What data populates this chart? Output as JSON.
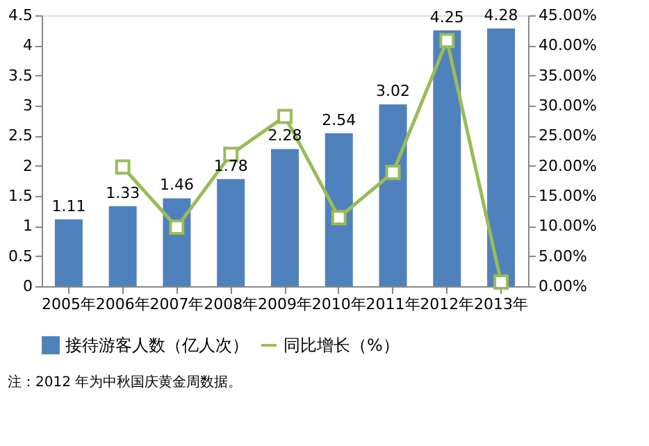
{
  "chart_data": {
    "type": "bar",
    "categories": [
      "2005年",
      "2006年",
      "2007年",
      "2008年",
      "2009年",
      "2010年",
      "2011年",
      "2012年",
      "2013年"
    ],
    "series": [
      {
        "name": "接待游客人数（亿人次）",
        "color": "#4f81bd",
        "values": [
          1.11,
          1.33,
          1.46,
          1.78,
          2.28,
          2.54,
          3.02,
          4.25,
          4.28
        ],
        "value_labels": [
          "1.11",
          "1.33",
          "1.46",
          "1.78",
          "2.28",
          "2.54",
          "3.02",
          "4.25",
          "4.28"
        ]
      },
      {
        "name": "同比增长（%）",
        "type": "line",
        "axis": "y2",
        "color": "#9bbb59",
        "marker": "square",
        "values": [
          null,
          19.8,
          9.8,
          21.9,
          28.2,
          11.4,
          18.9,
          40.8,
          0.7
        ]
      }
    ],
    "ylim": [
      0,
      4.5
    ],
    "yticks": [
      0,
      0.5,
      1,
      1.5,
      2,
      2.5,
      3,
      3.5,
      4,
      4.5
    ],
    "y2lim": [
      0,
      45
    ],
    "y2ticks": [
      {
        "value": 0,
        "label": "0.00%"
      },
      {
        "value": 5,
        "label": "5.00%"
      },
      {
        "value": 10,
        "label": "10.00%"
      },
      {
        "value": 15,
        "label": "15.00%"
      },
      {
        "value": 20,
        "label": "20.00%"
      },
      {
        "value": 25,
        "label": "25.00%"
      },
      {
        "value": 30,
        "label": "30.00%"
      },
      {
        "value": 35,
        "label": "35.00%"
      },
      {
        "value": 40,
        "label": "40.00%"
      },
      {
        "value": 45,
        "label": "45.00%"
      }
    ],
    "grid": false,
    "legend": "bottom",
    "annotations": [
      "注：2012 年为中秋国庆黄金周数据。"
    ]
  }
}
